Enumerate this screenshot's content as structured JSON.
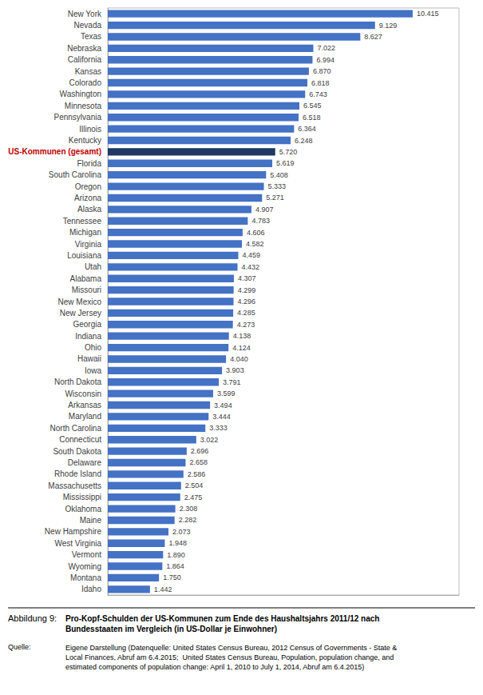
{
  "chart_data": {
    "type": "bar",
    "orientation": "horizontal",
    "title": "Abbildung 9:",
    "subtitle": "Pro-Kopf-Schulden der US-Kommunen zum Ende des Haushaltsjahrs 2011/12 nach\nBundesstaaten im Vergleich (in US-Dollar je Einwohner)",
    "annotations": [
      "Quelle:",
      "Eigene Darstellung (Datenquelle: United States Census Bureau, 2012 Census of Governments - State &\nLocal Finances, Abruf am 6.4.2015;  United States Census Bureau, Population, population change, and\nestimated components of population change: April 1, 2010 to July 1, 2014, Abruf am 6.4.2015)"
    ],
    "categories": [
      "New York",
      "Nevada",
      "Texas",
      "Nebraska",
      "California",
      "Kansas",
      "Colorado",
      "Washington",
      "Minnesota",
      "Pennsylvania",
      "Illinois",
      "Kentucky",
      "US-Kommunen (gesamt)",
      "Florida",
      "South Carolina",
      "Oregon",
      "Arizona",
      "Alaska",
      "Tennessee",
      "Michigan",
      "Virginia",
      "Louisiana",
      "Utah",
      "Alabama",
      "Missouri",
      "New Mexico",
      "New Jersey",
      "Georgia",
      "Indiana",
      "Ohio",
      "Hawaii",
      "Iowa",
      "North Dakota",
      "Wisconsin",
      "Arkansas",
      "Maryland",
      "North Carolina",
      "Connecticut",
      "South Dakota",
      "Delaware",
      "Rhode Island",
      "Massachusetts",
      "Mississippi",
      "Oklahoma",
      "Maine",
      "New Hampshire",
      "West Virginia",
      "Vermont",
      "Wyoming",
      "Montana",
      "Idaho"
    ],
    "values": [
      10.415,
      9.129,
      8.627,
      7.022,
      6.994,
      6.87,
      6.818,
      6.743,
      6.545,
      6.518,
      6.364,
      6.248,
      5.72,
      5.619,
      5.408,
      5.333,
      5.271,
      4.907,
      4.783,
      4.606,
      4.582,
      4.459,
      4.432,
      4.307,
      4.299,
      4.296,
      4.285,
      4.273,
      4.138,
      4.124,
      4.04,
      3.903,
      3.791,
      3.599,
      3.494,
      3.444,
      3.333,
      3.022,
      2.696,
      2.658,
      2.586,
      2.504,
      2.475,
      2.308,
      2.282,
      2.073,
      1.948,
      1.89,
      1.864,
      1.75,
      1.442
    ],
    "value_labels": [
      "10.415",
      "9.129",
      "8.627",
      "7.022",
      "6.994",
      "6.870",
      "6.818",
      "6.743",
      "6.545",
      "6.518",
      "6.364",
      "6.248",
      "5.720",
      "5.619",
      "5.408",
      "5.333",
      "5.271",
      "4.907",
      "4.783",
      "4.606",
      "4.582",
      "4.459",
      "4.432",
      "4.307",
      "4.299",
      "4.296",
      "4.285",
      "4.273",
      "4.138",
      "4.124",
      "4.040",
      "3.903",
      "3.791",
      "3.599",
      "3.494",
      "3.444",
      "3.333",
      "3.022",
      "2.696",
      "2.658",
      "2.586",
      "2.504",
      "2.475",
      "2.308",
      "2.282",
      "2.073",
      "1.948",
      "1.890",
      "1.864",
      "1.750",
      "1.442"
    ],
    "colors": [
      "#4472C4",
      "#4472C4",
      "#4472C4",
      "#4472C4",
      "#4472C4",
      "#4472C4",
      "#4472C4",
      "#4472C4",
      "#4472C4",
      "#4472C4",
      "#4472C4",
      "#4472C4",
      "#1F3864",
      "#4472C4",
      "#4472C4",
      "#4472C4",
      "#4472C4",
      "#4472C4",
      "#4472C4",
      "#4472C4",
      "#4472C4",
      "#4472C4",
      "#4472C4",
      "#4472C4",
      "#4472C4",
      "#4472C4",
      "#4472C4",
      "#4472C4",
      "#4472C4",
      "#4472C4",
      "#4472C4",
      "#4472C4",
      "#4472C4",
      "#4472C4",
      "#4472C4",
      "#4472C4",
      "#4472C4",
      "#4472C4",
      "#4472C4",
      "#4472C4",
      "#4472C4",
      "#4472C4",
      "#4472C4",
      "#4472C4",
      "#4472C4",
      "#4472C4",
      "#4472C4",
      "#4472C4",
      "#4472C4",
      "#4472C4",
      "#4472C4"
    ],
    "xlim": [
      0,
      12.0
    ],
    "data_labels": true,
    "tick_labels": "y",
    "grid": false
  }
}
